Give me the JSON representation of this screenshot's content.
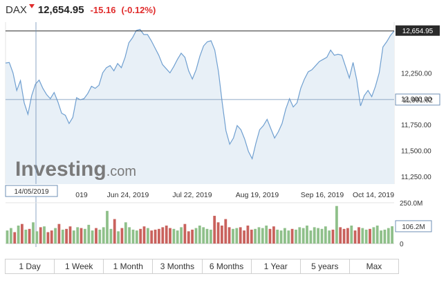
{
  "header": {
    "symbol": "DAX",
    "price": "12,654.95",
    "change": "-15.16",
    "change_pct": "(-0.12%)"
  },
  "colors": {
    "line": "#6f9fd0",
    "area": "#e8f0f7",
    "up": "#8fc08a",
    "down": "#c9625d",
    "negative": "#e02b2b"
  },
  "watermark": "Investing.com",
  "crosshair": {
    "date_label": "14/05/2019",
    "price_label": "11,991.62"
  },
  "last_price_label": "12,654.95",
  "range_buttons": [
    "1 Day",
    "1 Week",
    "1 Month",
    "3 Months",
    "6 Months",
    "1 Year",
    "5 years",
    "Max"
  ],
  "chart_data": {
    "type": "area",
    "title": "DAX",
    "x_tick_labels": [
      "Jun 24, 2019",
      "Jul 22, 2019",
      "Aug 19, 2019",
      "Sep 16, 2019",
      "Oct 14, 2019"
    ],
    "x_tick_partial_label": "019",
    "y_tick_labels": [
      "12,250.00",
      "12,000.00",
      "11,750.00",
      "11,500.00",
      "11,250.00"
    ],
    "y_ticks": [
      12250,
      12000,
      11750,
      11500,
      11250
    ],
    "ylim": [
      11175,
      12740
    ],
    "close": [
      12345,
      12350,
      12250,
      12080,
      12175,
      11960,
      11850,
      12030,
      12140,
      12180,
      12100,
      12040,
      12000,
      12060,
      11970,
      11860,
      11840,
      11760,
      11820,
      12010,
      11990,
      12000,
      12050,
      12120,
      12100,
      12130,
      12250,
      12300,
      12320,
      12270,
      12340,
      12300,
      12400,
      12540,
      12590,
      12660,
      12670,
      12620,
      12620,
      12560,
      12490,
      12420,
      12330,
      12290,
      12250,
      12310,
      12380,
      12440,
      12400,
      12270,
      12190,
      12280,
      12410,
      12510,
      12550,
      12560,
      12470,
      12260,
      11960,
      11690,
      11560,
      11620,
      11740,
      11700,
      11610,
      11490,
      11420,
      11570,
      11700,
      11740,
      11800,
      11710,
      11620,
      11680,
      11760,
      11900,
      12000,
      11920,
      11960,
      12100,
      12190,
      12260,
      12280,
      12320,
      12360,
      12380,
      12400,
      12470,
      12420,
      12430,
      12420,
      12310,
      12200,
      12350,
      12180,
      11930,
      12030,
      12080,
      12020,
      12120,
      12250,
      12500,
      12550,
      12610,
      12655
    ],
    "volume_axis_labels": [
      "250.0M",
      "0"
    ],
    "volume_label": "106.2M",
    "volume_scale_max": 250,
    "volume_up": [
      true,
      true,
      false,
      true,
      false,
      true,
      false,
      true,
      true,
      false,
      true,
      false,
      false,
      true,
      false,
      true,
      false,
      false,
      true,
      true,
      false,
      true,
      true,
      true,
      false,
      true,
      true,
      true,
      true,
      false,
      true,
      false,
      true,
      true,
      true,
      true,
      false,
      false,
      true,
      false,
      false,
      false,
      false,
      false,
      false,
      true,
      true,
      true,
      false,
      false,
      false,
      true,
      true,
      true,
      true,
      true,
      false,
      false,
      false,
      false,
      false,
      true,
      true,
      false,
      false,
      false,
      false,
      true,
      true,
      true,
      true,
      false,
      false,
      true,
      true,
      true,
      true,
      false,
      true,
      true,
      true,
      true,
      true,
      true,
      true,
      true,
      true,
      true,
      false,
      true,
      false,
      false,
      false,
      true,
      false,
      false,
      true,
      true,
      false,
      true,
      true,
      true,
      true,
      true,
      true
    ],
    "volume": [
      80,
      95,
      70,
      110,
      120,
      85,
      90,
      130,
      75,
      100,
      105,
      70,
      80,
      95,
      120,
      85,
      90,
      105,
      80,
      100,
      95,
      90,
      115,
      80,
      95,
      85,
      100,
      200,
      90,
      150,
      75,
      95,
      130,
      100,
      85,
      80,
      90,
      105,
      95,
      80,
      85,
      90,
      100,
      110,
      95,
      90,
      80,
      100,
      120,
      75,
      85,
      95,
      110,
      100,
      90,
      85,
      170,
      130,
      110,
      150,
      100,
      90,
      95,
      100,
      80,
      110,
      85,
      90,
      100,
      95,
      110,
      90,
      105,
      85,
      80,
      95,
      80,
      90,
      85,
      100,
      95,
      110,
      80,
      100,
      95,
      90,
      105,
      80,
      85,
      230,
      100,
      90,
      95,
      110,
      80,
      100,
      95,
      85,
      90,
      100,
      110,
      80,
      85,
      95,
      106
    ]
  }
}
